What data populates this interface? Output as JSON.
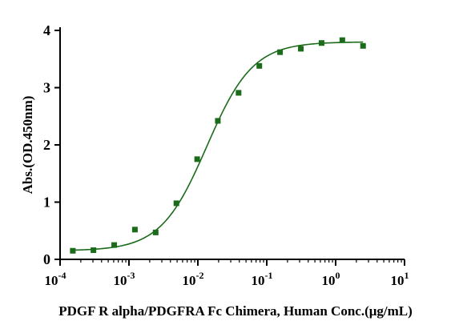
{
  "chart_data": {
    "type": "scatter",
    "xscale": "log",
    "xlabel": "PDGF R alpha/PDGFRA Fc Chimera, Human Conc.(μg/mL)",
    "ylabel": "Abs.(OD.450nm)",
    "xlim": [
      0.0001,
      10
    ],
    "ylim": [
      0,
      4
    ],
    "x_ticks": [
      {
        "base": "10",
        "exp": "-4",
        "value": 0.0001
      },
      {
        "base": "10",
        "exp": "-3",
        "value": 0.001
      },
      {
        "base": "10",
        "exp": "-2",
        "value": 0.01
      },
      {
        "base": "10",
        "exp": "-1",
        "value": 0.1
      },
      {
        "base": "10",
        "exp": "0",
        "value": 1
      },
      {
        "base": "10",
        "exp": "1",
        "value": 10
      }
    ],
    "y_ticks": [
      "0",
      "1",
      "2",
      "3",
      "4"
    ],
    "grid": false,
    "legend": "none",
    "color": "#1a6b1a",
    "series": [
      {
        "x": [
          0.000153,
          0.000305,
          0.00061,
          0.00122,
          0.00244,
          0.00488,
          0.00977,
          0.0195,
          0.039,
          0.078,
          0.156,
          0.3125,
          0.625,
          1.25,
          2.5
        ],
        "y": [
          0.15,
          0.16,
          0.25,
          0.52,
          0.47,
          0.98,
          1.75,
          2.42,
          2.91,
          3.38,
          3.62,
          3.68,
          3.78,
          3.83,
          3.73
        ]
      }
    ],
    "fit": {
      "type": "4PL",
      "bottom": 0.15,
      "top": 3.8,
      "ec50": 0.0135,
      "hill": 1.3
    }
  }
}
